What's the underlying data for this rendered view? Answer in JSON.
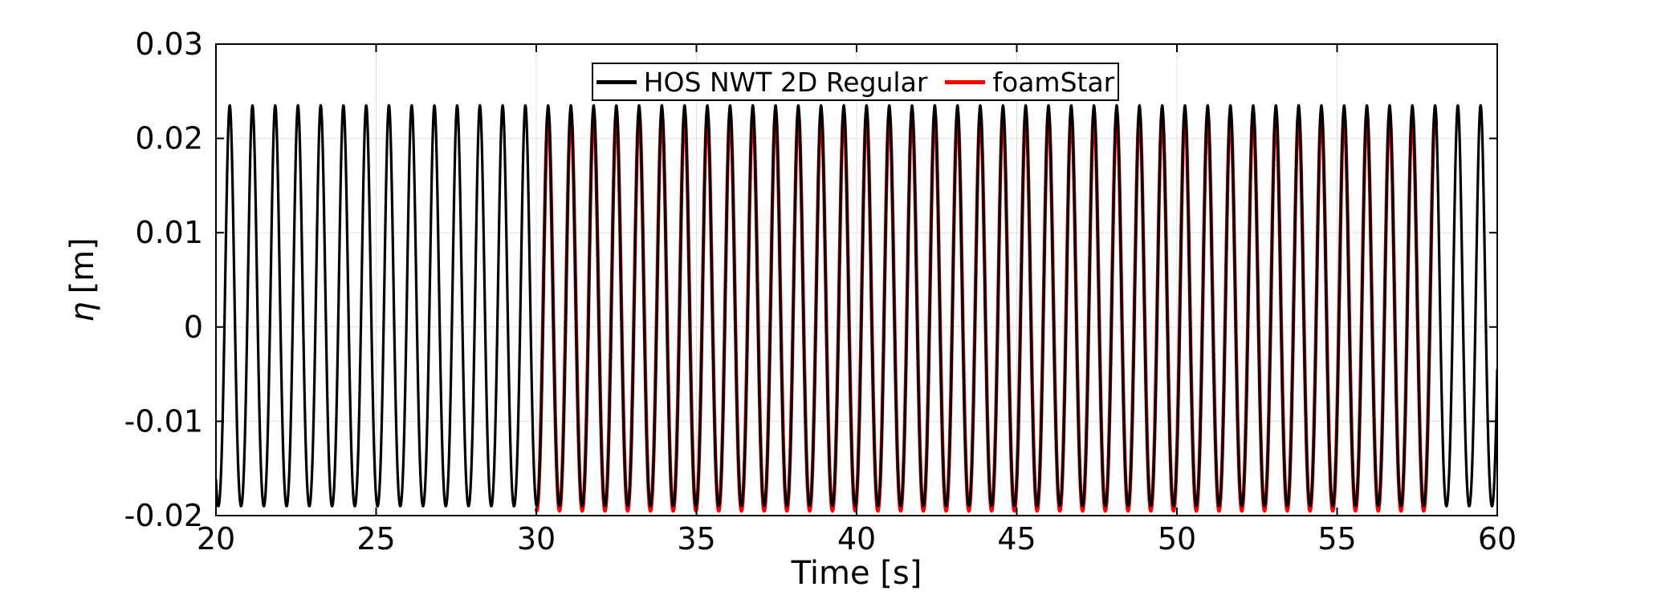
{
  "figure": {
    "background": "#ffffff"
  },
  "chart_data": {
    "type": "line",
    "title": "",
    "xlabel": "Time [s]",
    "ylabel": "η [m]",
    "ylabel_symbol": "η",
    "ylabel_unit": "[m]",
    "xlim": [
      20,
      60
    ],
    "ylim": [
      -0.02,
      0.03
    ],
    "x_ticks": [
      20,
      25,
      30,
      35,
      40,
      45,
      50,
      55,
      60
    ],
    "x_tick_labels": [
      "20",
      "25",
      "30",
      "35",
      "40",
      "45",
      "50",
      "55",
      "60"
    ],
    "y_ticks": [
      0.03,
      0.02,
      0.01,
      0,
      -0.01,
      -0.02
    ],
    "y_tick_labels": [
      "0.03",
      "0.02",
      "0.01",
      "0",
      "-0.01",
      "-0.02"
    ],
    "grid": true,
    "grid_color": "#e0e0e0",
    "axis_color": "#000000",
    "tick_direction": "in",
    "legend_position": "north-inside-horizontal",
    "series": [
      {
        "name": "HOS NWT 2D Regular",
        "color": "#000000",
        "line_width": 3.2,
        "z_order": 2,
        "waveform": {
          "kind": "stokes2-regular-wave",
          "t_start_s": 20,
          "t_end_s": 60,
          "period_s": 0.71,
          "peak_time_s": 20.43,
          "amp1_m": 0.02125,
          "amp2_m": 0.00225,
          "crest_m": 0.0235,
          "trough_m": -0.019
        }
      },
      {
        "name": "foamStar",
        "color": "#ff0000",
        "line_width": 4.4,
        "z_order": 1,
        "waveform": {
          "kind": "stokes2-regular-wave",
          "t_start_s": 30,
          "t_end_s": 58.1,
          "period_s": 0.71,
          "peak_time_s": 20.43,
          "amp1_m": 0.02115,
          "amp2_m": 0.00165,
          "crest_m": 0.0228,
          "trough_m": -0.0195
        }
      }
    ]
  }
}
